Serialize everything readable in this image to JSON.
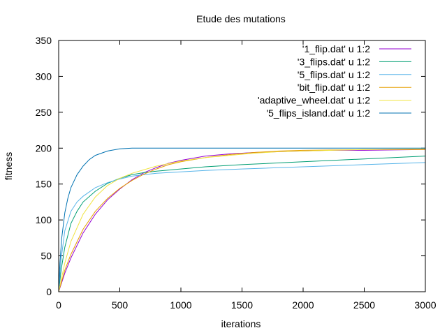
{
  "chart_data": {
    "type": "line",
    "title": "Etude des mutations",
    "xlabel": "iterations",
    "ylabel": "fitness",
    "xlim": [
      0,
      3000
    ],
    "ylim": [
      0,
      350
    ],
    "xticks": [
      0,
      500,
      1000,
      1500,
      2000,
      2500,
      3000
    ],
    "yticks": [
      0,
      50,
      100,
      150,
      200,
      250,
      300,
      350
    ],
    "grid": false,
    "legend_position": "top-right",
    "series": [
      {
        "name": "'1_flip.dat' u 1:2",
        "color": "#9400d3",
        "x": [
          0,
          50,
          100,
          200,
          300,
          400,
          500,
          600,
          700,
          800,
          900,
          1000,
          1200,
          1400,
          1600,
          1800,
          2000,
          2200,
          2500,
          3000
        ],
        "y": [
          0,
          26,
          47,
          82,
          108,
          128,
          143,
          156,
          166,
          173,
          179,
          183,
          189,
          192,
          194,
          195,
          196,
          197,
          197,
          198
        ]
      },
      {
        "name": "'3_flips.dat' u 1:2",
        "color": "#009e73",
        "x": [
          0,
          20,
          50,
          100,
          150,
          200,
          300,
          400,
          500,
          600,
          700,
          800,
          1000,
          1200,
          1500,
          2000,
          2500,
          3000
        ],
        "y": [
          0,
          30,
          62,
          95,
          112,
          125,
          140,
          151,
          158,
          163,
          166,
          168,
          171,
          174,
          177,
          181,
          185,
          189
        ]
      },
      {
        "name": "'5_flips.dat' u 1:2",
        "color": "#56b4e9",
        "x": [
          0,
          20,
          50,
          100,
          150,
          200,
          300,
          400,
          500,
          600,
          700,
          800,
          1000,
          1200,
          1500,
          2000,
          2500,
          3000
        ],
        "y": [
          0,
          45,
          85,
          112,
          125,
          133,
          145,
          152,
          157,
          161,
          163,
          165,
          167,
          169,
          171,
          174,
          177,
          180
        ]
      },
      {
        "name": "'bit_flip.dat' u 1:2",
        "color": "#e69f00",
        "x": [
          0,
          50,
          100,
          200,
          300,
          400,
          500,
          600,
          700,
          800,
          900,
          1000,
          1200,
          1400,
          1600,
          1800,
          2000,
          2500,
          3000
        ],
        "y": [
          0,
          30,
          52,
          87,
          112,
          130,
          144,
          155,
          164,
          171,
          177,
          181,
          187,
          191,
          194,
          196,
          197,
          198,
          198
        ]
      },
      {
        "name": "'adaptive_wheel.dat'  u 1:2",
        "color": "#f0e442",
        "x": [
          0,
          50,
          100,
          200,
          300,
          400,
          500,
          600,
          700,
          800,
          1000,
          1200,
          1400,
          1600,
          1800,
          2000,
          2500,
          3000
        ],
        "y": [
          0,
          40,
          70,
          108,
          132,
          148,
          158,
          165,
          170,
          175,
          182,
          187,
          190,
          193,
          195,
          196,
          198,
          199
        ]
      },
      {
        "name": "'5_flips_island.dat' u 1:2",
        "color": "#0072b2",
        "x": [
          0,
          10,
          25,
          50,
          75,
          100,
          150,
          200,
          250,
          300,
          400,
          500,
          600,
          700,
          1000,
          2000,
          3000
        ],
        "y": [
          0,
          40,
          75,
          110,
          130,
          145,
          163,
          175,
          184,
          190,
          196,
          199,
          200,
          200,
          200,
          200,
          200
        ]
      }
    ]
  }
}
